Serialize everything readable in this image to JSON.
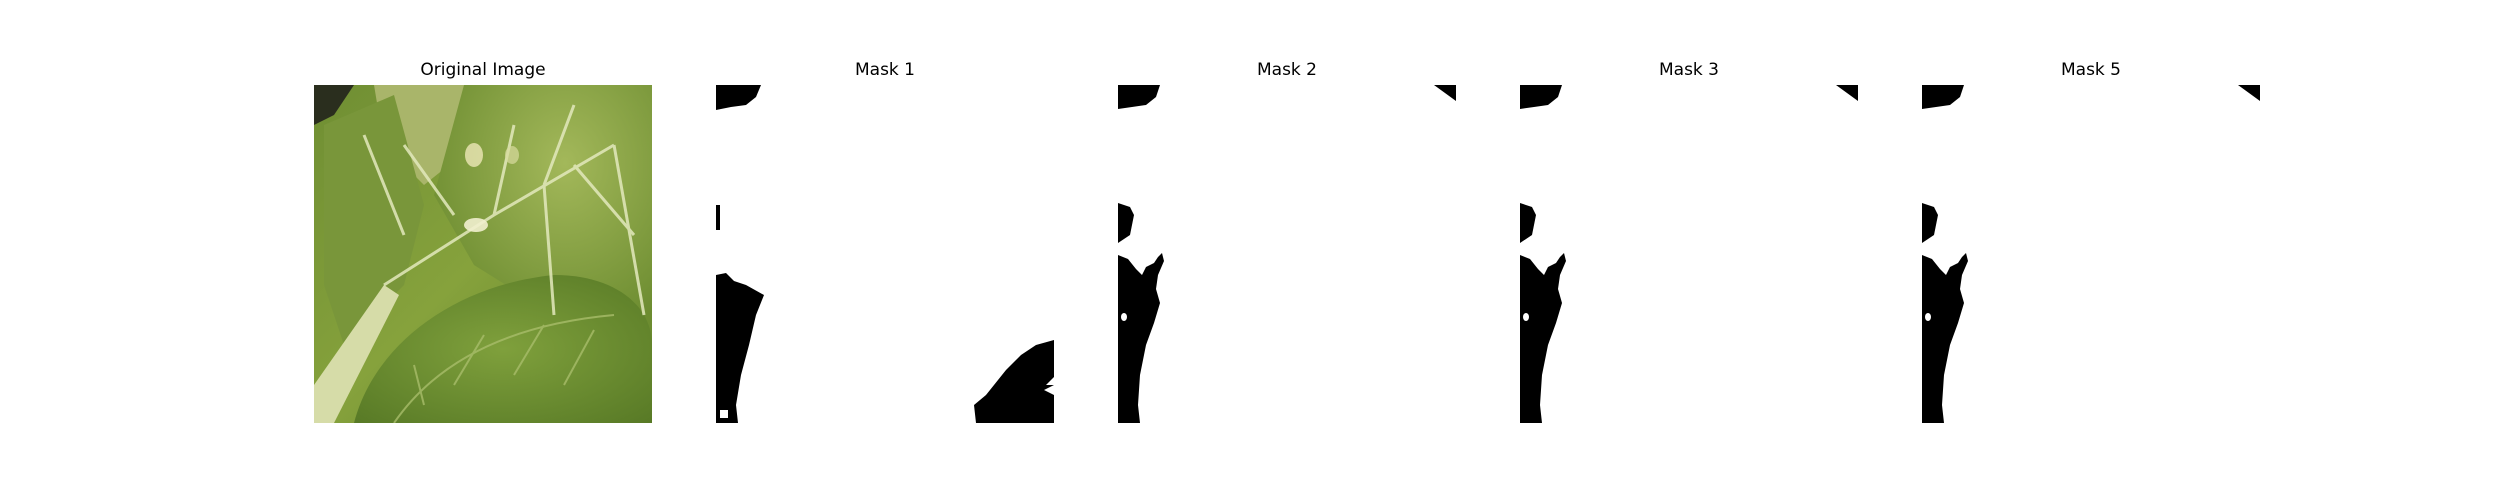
{
  "panels": [
    {
      "title": "Original Image",
      "type": "photo",
      "subject": "green-leaves"
    },
    {
      "title": "Mask 1",
      "type": "mask"
    },
    {
      "title": "Mask 2",
      "type": "mask"
    },
    {
      "title": "Mask 3",
      "type": "mask"
    },
    {
      "title": "Mask 5",
      "type": "mask"
    }
  ],
  "colors": {
    "background": "#ffffff",
    "mask_fg": "#000000",
    "mask_bg": "#ffffff",
    "leaf_dark": "#5e7f2a",
    "leaf_mid": "#7e9c3a",
    "leaf_light": "#b4c46a",
    "vein": "#e6ecc0"
  }
}
